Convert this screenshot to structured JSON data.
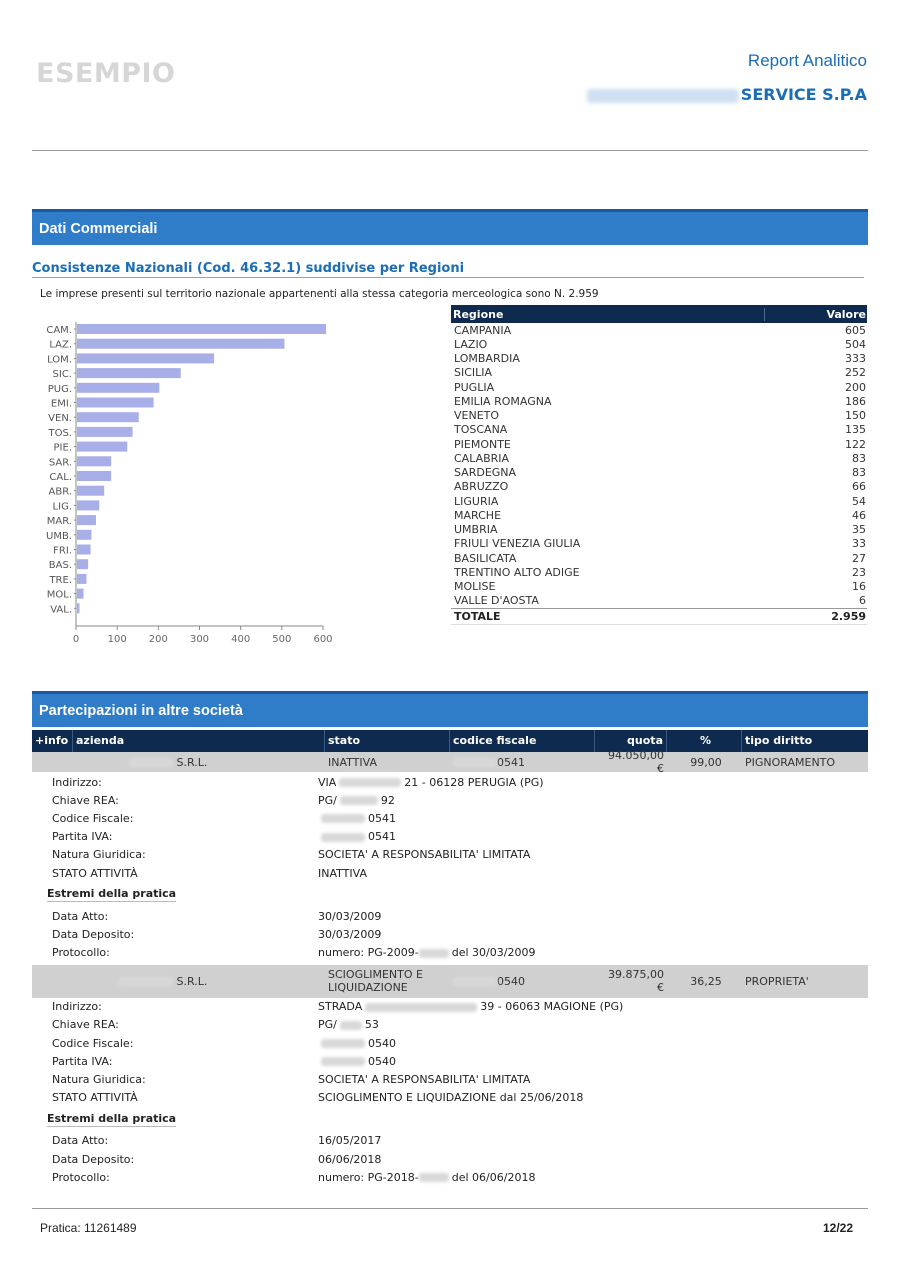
{
  "header": {
    "watermark": "ESEMPIO",
    "report_title": "Report Analitico",
    "company_suffix": "SERVICE S.P.A"
  },
  "section1": {
    "title": "Dati Commerciali",
    "subtitle": "Consistenze Nazionali (Cod. 46.32.1) suddivise per Regioni",
    "intro": "Le imprese presenti sul territorio nazionale appartenenti alla stessa categoria merceologica sono N. 2.959"
  },
  "chart_data": {
    "type": "bar",
    "orientation": "horizontal",
    "categories": [
      "CAM.",
      "LAZ.",
      "LOM.",
      "SIC.",
      "PUG.",
      "EMI.",
      "VEN.",
      "TOS.",
      "PIE.",
      "SAR.",
      "CAL.",
      "ABR.",
      "LIG.",
      "MAR.",
      "UMB.",
      "FRI.",
      "BAS.",
      "TRE.",
      "MOL.",
      "VAL."
    ],
    "values": [
      605,
      504,
      333,
      252,
      200,
      186,
      150,
      135,
      122,
      83,
      83,
      66,
      54,
      46,
      35,
      33,
      27,
      23,
      16,
      6
    ],
    "xticks": [
      0,
      100,
      200,
      300,
      400,
      500,
      600
    ],
    "xlim": [
      0,
      600
    ],
    "bar_color": "#a8aee8",
    "grid": false
  },
  "region_table": {
    "headers": [
      "Regione",
      "Valore"
    ],
    "rows": [
      [
        "CAMPANIA",
        "605"
      ],
      [
        "LAZIO",
        "504"
      ],
      [
        "LOMBARDIA",
        "333"
      ],
      [
        "SICILIA",
        "252"
      ],
      [
        "PUGLIA",
        "200"
      ],
      [
        "EMILIA ROMAGNA",
        "186"
      ],
      [
        "VENETO",
        "150"
      ],
      [
        "TOSCANA",
        "135"
      ],
      [
        "PIEMONTE",
        "122"
      ],
      [
        "CALABRIA",
        "83"
      ],
      [
        "SARDEGNA",
        "83"
      ],
      [
        "ABRUZZO",
        "66"
      ],
      [
        "LIGURIA",
        "54"
      ],
      [
        "MARCHE",
        "46"
      ],
      [
        "UMBRIA",
        "35"
      ],
      [
        "FRIULI VENEZIA GIULIA",
        "33"
      ],
      [
        "BASILICATA",
        "27"
      ],
      [
        "TRENTINO ALTO ADIGE",
        "23"
      ],
      [
        "MOLISE",
        "16"
      ],
      [
        "VALLE D'AOSTA",
        "6"
      ]
    ],
    "total_label": "TOTALE",
    "total_value": "2.959"
  },
  "section2": {
    "title": "Partecipazioni in altre società",
    "headers": {
      "info": "+info",
      "azienda": "azienda",
      "stato": "stato",
      "codice_fiscale": "codice fiscale",
      "quota": "quota",
      "percent": "%",
      "tipo_diritto": "tipo diritto"
    },
    "companies": [
      {
        "azienda": "S.R.L.",
        "stato": "INATTIVA",
        "codice_fiscale": "0541",
        "quota": "94.050,00 €",
        "percent": "99,00",
        "tipo_diritto": "PIGNORAMENTO",
        "details": [
          {
            "label": "Indirizzo:",
            "pre": "VIA",
            "post": "21 - 06128 PERUGIA (PG)"
          },
          {
            "label": "Chiave REA:",
            "pre": "PG/",
            "post": "92"
          },
          {
            "label": "Codice Fiscale:",
            "pre": "",
            "post": "0541"
          },
          {
            "label": "Partita IVA:",
            "pre": "",
            "post": "0541"
          },
          {
            "label": "Natura Giuridica:",
            "pre": "SOCIETA' A RESPONSABILITA' LIMITATA",
            "post": ""
          },
          {
            "label": "STATO ATTIVITÀ",
            "pre": "INATTIVA",
            "post": ""
          }
        ],
        "pratica_title": "Estremi della pratica",
        "pratica": [
          {
            "label": "Data Atto:",
            "pre": "30/03/2009",
            "post": ""
          },
          {
            "label": "Data Deposito:",
            "pre": "30/03/2009",
            "post": ""
          },
          {
            "label": "Protocollo:",
            "pre": "numero:  PG-2009-",
            "post": "del  30/03/2009"
          }
        ]
      },
      {
        "azienda": "S.R.L.",
        "stato": "SCIOGLIMENTO E LIQUIDAZIONE",
        "codice_fiscale": "0540",
        "quota": "39.875,00 €",
        "percent": "36,25",
        "tipo_diritto": "PROPRIETA'",
        "details": [
          {
            "label": "Indirizzo:",
            "pre": "STRADA",
            "post": "39 - 06063 MAGIONE (PG)"
          },
          {
            "label": "Chiave REA:",
            "pre": "PG/",
            "post": "53"
          },
          {
            "label": "Codice Fiscale:",
            "pre": "",
            "post": "0540"
          },
          {
            "label": "Partita IVA:",
            "pre": "",
            "post": "0540"
          },
          {
            "label": "Natura Giuridica:",
            "pre": "SOCIETA' A RESPONSABILITA' LIMITATA",
            "post": ""
          },
          {
            "label": "STATO ATTIVITÀ",
            "pre": "SCIOGLIMENTO E LIQUIDAZIONE dal 25/06/2018",
            "post": ""
          }
        ],
        "pratica_title": "Estremi della pratica",
        "pratica": [
          {
            "label": "Data Atto:",
            "pre": "16/05/2017",
            "post": ""
          },
          {
            "label": "Data Deposito:",
            "pre": "06/06/2018",
            "post": ""
          },
          {
            "label": "Protocollo:",
            "pre": "numero:  PG-2018-",
            "post": "del  06/06/2018"
          }
        ]
      }
    ]
  },
  "footer": {
    "pratica": "Pratica: 11261489",
    "page": "12/22"
  }
}
